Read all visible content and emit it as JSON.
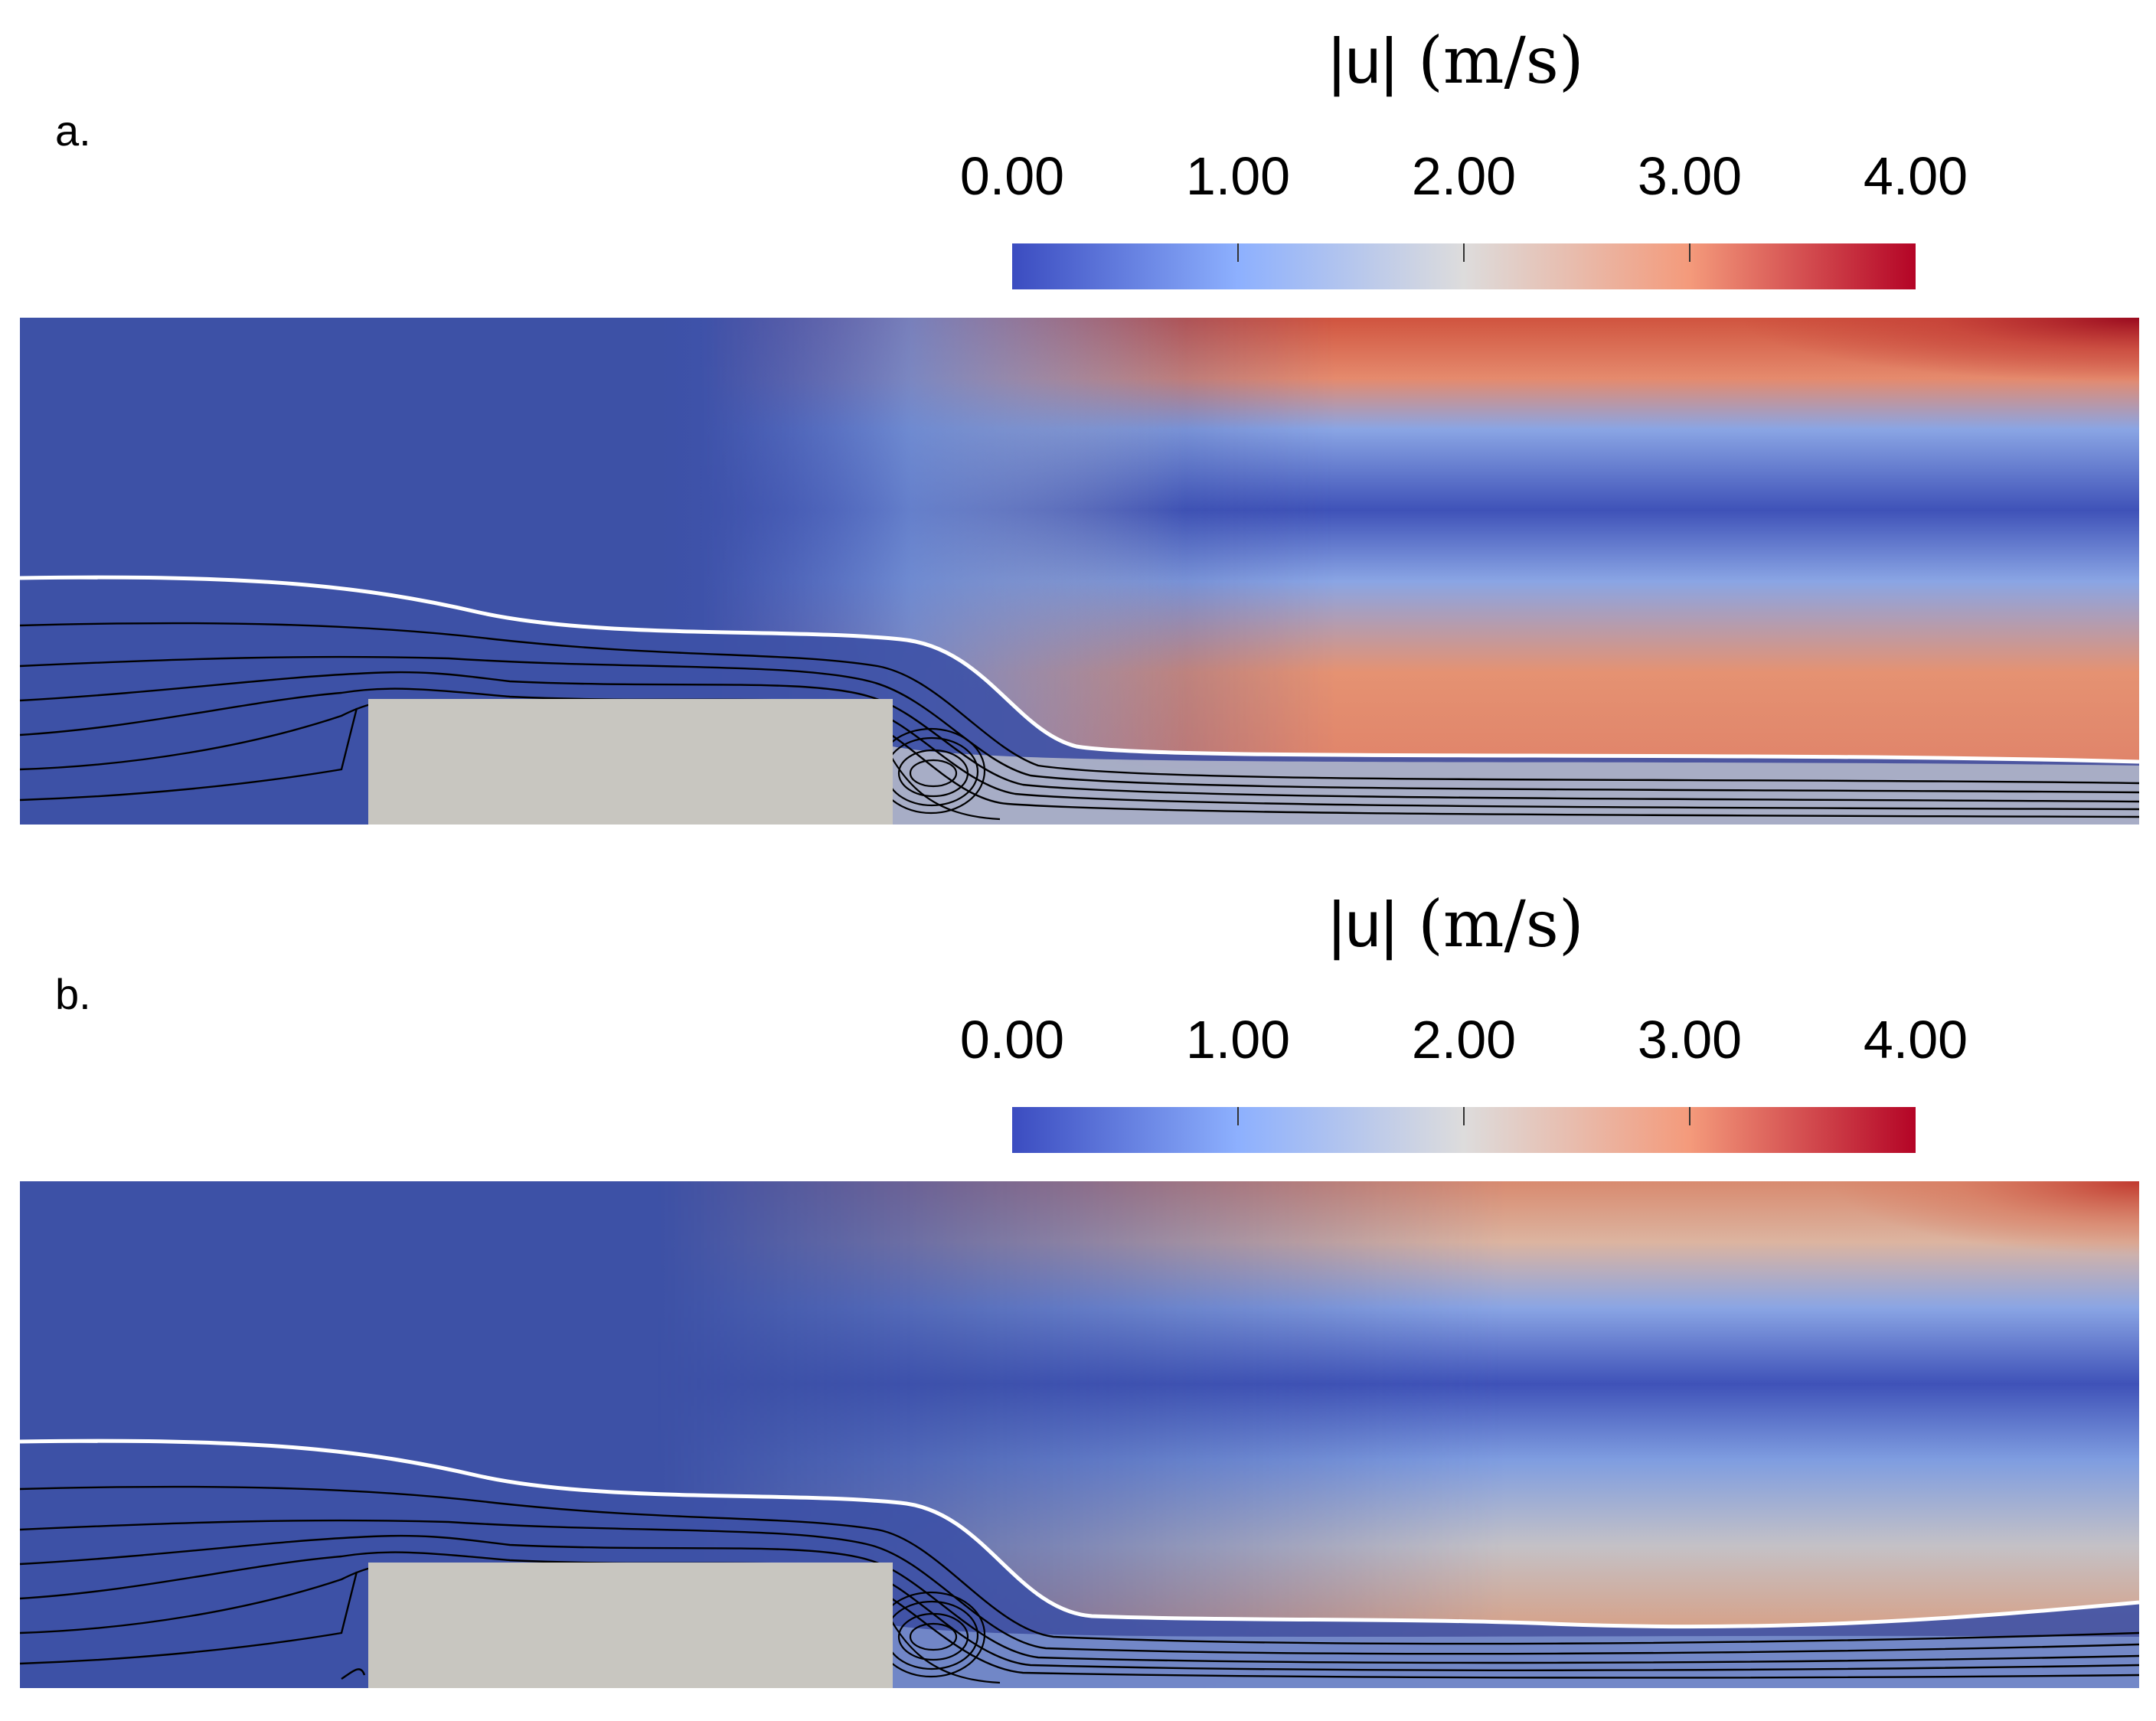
{
  "panels": [
    {
      "label": "a.",
      "colorbar": {
        "title_quantity": "|u|",
        "title_unit": "(m/s)",
        "tick_labels": [
          "0.00",
          "1.00",
          "2.00",
          "3.00",
          "4.00"
        ],
        "range": [
          0,
          4
        ],
        "colors": [
          "#3b4cc0",
          "#8db0fe",
          "#dddcdc",
          "#f49a7b",
          "#b40426"
        ]
      }
    },
    {
      "label": "b.",
      "colorbar": {
        "title_quantity": "|u|",
        "title_unit": "(m/s)",
        "tick_labels": [
          "0.00",
          "1.00",
          "2.00",
          "3.00",
          "4.00"
        ],
        "range": [
          0,
          4
        ],
        "colors": [
          "#3b4cc0",
          "#8db0fe",
          "#dddcdc",
          "#f49a7b",
          "#b40426"
        ]
      }
    }
  ],
  "colors": {
    "obstacle": "#c8c6c0",
    "streamline": "#000000",
    "interface": "#ffffff",
    "low": "#3b4cc0",
    "high": "#b40426"
  }
}
